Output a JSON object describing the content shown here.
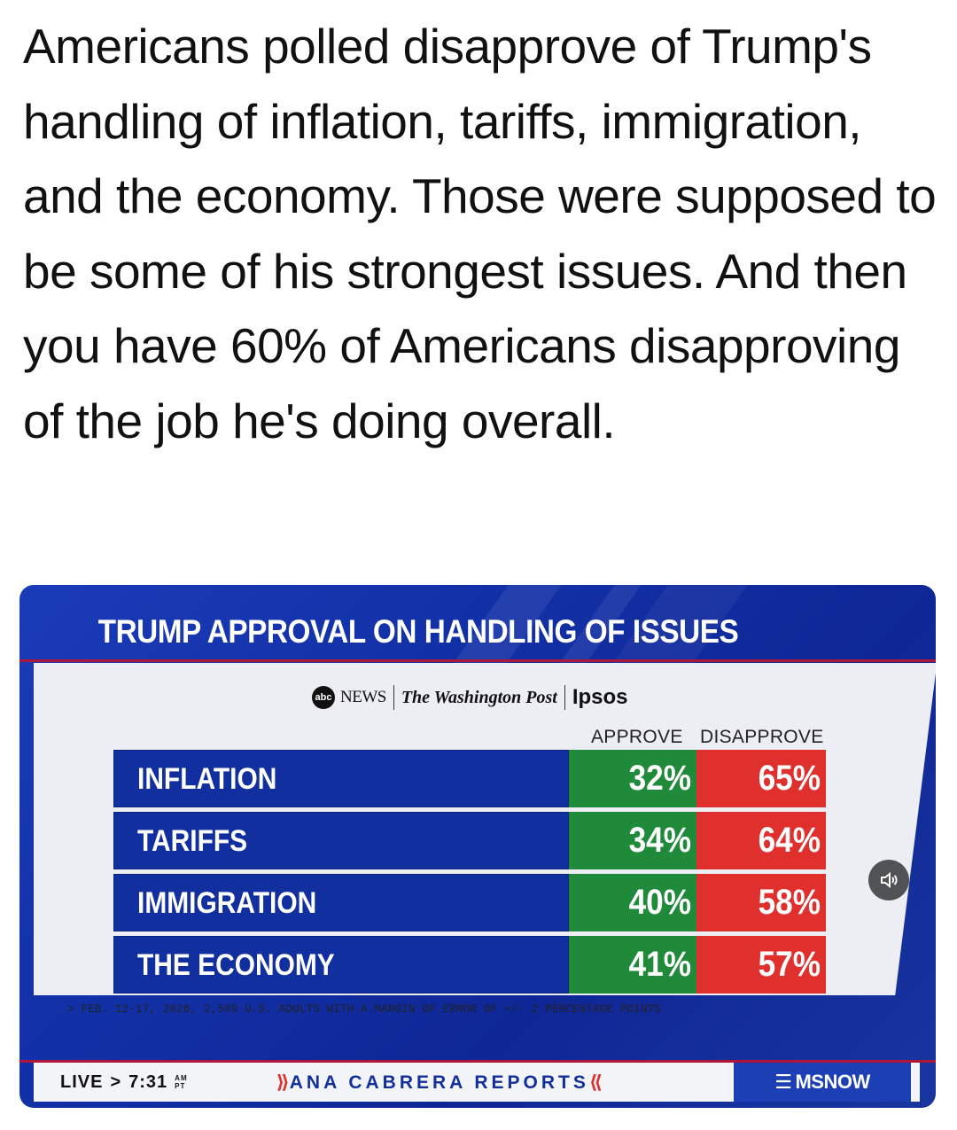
{
  "post": {
    "text": "Americans polled disapprove of Trump's handling of inflation, tariffs, immigration, and the economy. Those were supposed to be some of his strongest issues. And then you have 60% of Americans disapproving of the job he's doing overall."
  },
  "broadcast": {
    "title": "TRUMP APPROVAL ON HANDLING OF ISSUES",
    "sources": {
      "abc_logo": "abc",
      "abc_news": "NEWS",
      "wapo": "The Washington Post",
      "ipsos": "Ipsos"
    },
    "columns": {
      "approve": "APPROVE",
      "disapprove": "DISAPPROVE"
    },
    "footnote": "> FEB. 12-17, 2026, 2,589 U.S. ADULTS WITH A MARGIN OF ERROR OF +/- 2 PERCENTAGE POINTS",
    "ticker": {
      "live": "LIVE",
      "time": "7:31",
      "am": "AM",
      "pt": "PT",
      "show": "ANA CABRERA REPORTS",
      "network": "MSNOW"
    },
    "icons": {
      "sound": "speaker-icon"
    },
    "colors": {
      "approve": "#1f8a3a",
      "disapprove": "#e0302e",
      "label_bg": "#112f9e"
    }
  },
  "chart_data": {
    "type": "table",
    "title": "TRUMP APPROVAL ON HANDLING OF ISSUES",
    "columns": [
      "APPROVE",
      "DISAPPROVE"
    ],
    "rows": [
      {
        "issue": "INFLATION",
        "approve": "32%",
        "disapprove": "65%"
      },
      {
        "issue": "TARIFFS",
        "approve": "34%",
        "disapprove": "64%"
      },
      {
        "issue": "IMMIGRATION",
        "approve": "40%",
        "disapprove": "58%"
      },
      {
        "issue": "THE ECONOMY",
        "approve": "41%",
        "disapprove": "57%"
      }
    ]
  }
}
